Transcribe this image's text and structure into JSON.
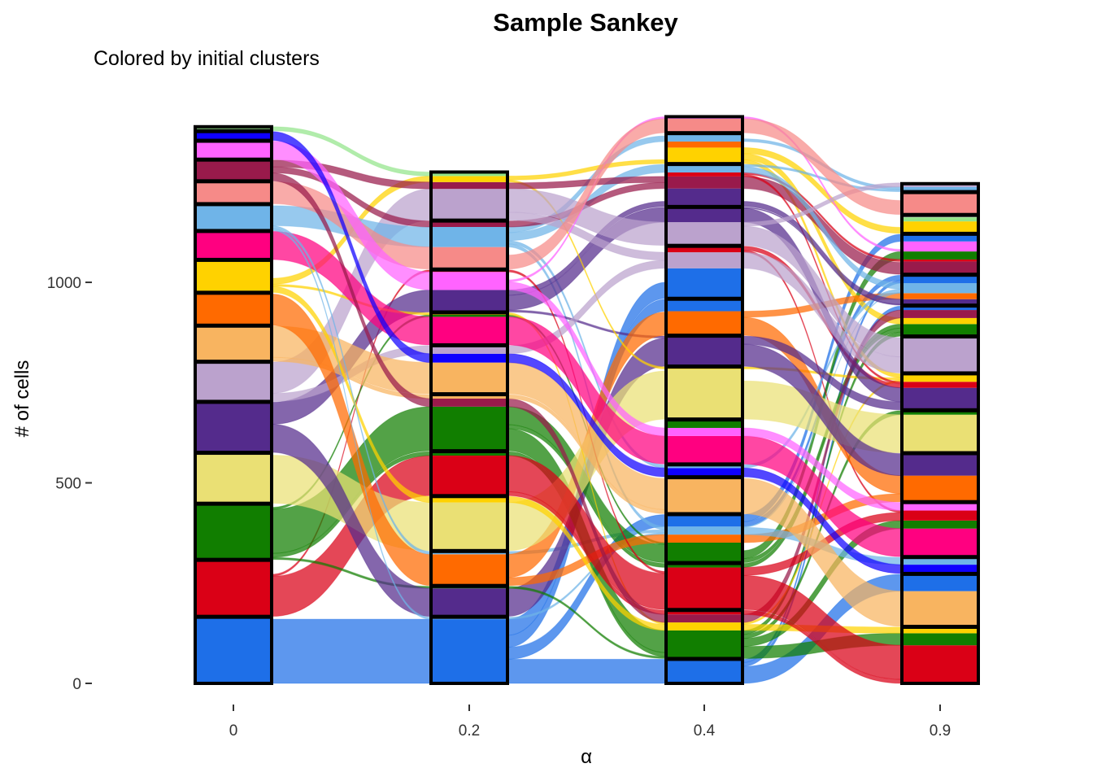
{
  "chart_data": {
    "type": "sankey",
    "title": "Sample Sankey",
    "subtitle": "Colored by initial clusters",
    "xlabel": "α",
    "ylabel": "# of cells",
    "ylim": [
      0,
      1420
    ],
    "yticks": [
      0,
      500,
      1000
    ],
    "grid": false,
    "legend": "none",
    "stages": [
      "0",
      "0.2",
      "0.4",
      "0.9"
    ],
    "initial_clusters": [
      {
        "id": "c1",
        "color": "#1E6FE8",
        "size": 165
      },
      {
        "id": "c2",
        "color": "#DA0016",
        "size": 140
      },
      {
        "id": "c3",
        "color": "#117E00",
        "size": 138
      },
      {
        "id": "c4",
        "color": "#EAE074",
        "size": 125
      },
      {
        "id": "c5",
        "color": "#542B8C",
        "size": 125
      },
      {
        "id": "c6",
        "color": "#BBA2CD",
        "size": 98
      },
      {
        "id": "c7",
        "color": "#F8B460",
        "size": 88
      },
      {
        "id": "c8",
        "color": "#FF6A00",
        "size": 80
      },
      {
        "id": "c9",
        "color": "#FFD200",
        "size": 80
      },
      {
        "id": "c10",
        "color": "#FF0080",
        "size": 70
      },
      {
        "id": "c11",
        "color": "#6FB4E8",
        "size": 65
      },
      {
        "id": "c12",
        "color": "#F68A88",
        "size": 55
      },
      {
        "id": "c13",
        "color": "#991A4B",
        "size": 52
      },
      {
        "id": "c14",
        "color": "#FF63FF",
        "size": 45
      },
      {
        "id": "c15",
        "color": "#0F00FF",
        "size": 22
      },
      {
        "id": "c16",
        "color": "#93E58A",
        "size": 10
      }
    ],
    "stage_clusters": {
      "0": [
        {
          "size": 165,
          "parts": [
            [
              "c1",
              165
            ]
          ]
        },
        {
          "size": 140,
          "parts": [
            [
              "c2",
              140
            ]
          ]
        },
        {
          "size": 138,
          "parts": [
            [
              "c3",
              138
            ]
          ]
        },
        {
          "size": 125,
          "parts": [
            [
              "c4",
              125
            ]
          ]
        },
        {
          "size": 125,
          "parts": [
            [
              "c5",
              125
            ]
          ]
        },
        {
          "size": 98,
          "parts": [
            [
              "c6",
              98
            ]
          ]
        },
        {
          "size": 88,
          "parts": [
            [
              "c7",
              88
            ]
          ]
        },
        {
          "size": 80,
          "parts": [
            [
              "c8",
              80
            ]
          ]
        },
        {
          "size": 80,
          "parts": [
            [
              "c9",
              80
            ]
          ]
        },
        {
          "size": 70,
          "parts": [
            [
              "c10",
              70
            ]
          ]
        },
        {
          "size": 65,
          "parts": [
            [
              "c11",
              65
            ]
          ]
        },
        {
          "size": 55,
          "parts": [
            [
              "c12",
              55
            ]
          ]
        },
        {
          "size": 52,
          "parts": [
            [
              "c13",
              52
            ]
          ]
        },
        {
          "size": 45,
          "parts": [
            [
              "c14",
              45
            ]
          ]
        },
        {
          "size": 22,
          "parts": [
            [
              "c15",
              22
            ]
          ]
        },
        {
          "size": 10,
          "parts": [
            [
              "c16",
              10
            ]
          ]
        }
      ],
      "0.2": [
        {
          "size": 165,
          "parts": [
            [
              "c1",
              160
            ],
            [
              "c11",
              5
            ]
          ]
        },
        {
          "size": 75,
          "parts": [
            [
              "c5",
              70
            ],
            [
              "c3",
              5
            ]
          ]
        },
        {
          "size": 85,
          "parts": [
            [
              "c8",
              78
            ],
            [
              "c11",
              7
            ]
          ]
        },
        {
          "size": 135,
          "parts": [
            [
              "c4",
              120
            ],
            [
              "c9",
              15
            ]
          ]
        },
        {
          "size": 110,
          "parts": [
            [
              "c2",
              100
            ],
            [
              "c3",
              10
            ]
          ]
        },
        {
          "size": 140,
          "parts": [
            [
              "c3",
              110
            ],
            [
              "c13",
              20
            ],
            [
              "c7",
              10
            ]
          ]
        },
        {
          "size": 120,
          "parts": [
            [
              "c7",
              78
            ],
            [
              "c15",
              22
            ],
            [
              "c6",
              20
            ]
          ]
        },
        {
          "size": 80,
          "parts": [
            [
              "c10",
              70
            ],
            [
              "c3",
              5
            ],
            [
              "c9",
              5
            ]
          ]
        },
        {
          "size": 105,
          "parts": [
            [
              "c5",
              55
            ],
            [
              "c14",
              45
            ],
            [
              "c2",
              5
            ]
          ]
        },
        {
          "size": 120,
          "parts": [
            [
              "c12",
              55
            ],
            [
              "c11",
              50
            ],
            [
              "c13",
              15
            ]
          ]
        },
        {
          "size": 120,
          "parts": [
            [
              "c6",
              78
            ],
            [
              "c13",
              17
            ],
            [
              "c9",
              15
            ],
            [
              "c16",
              10
            ]
          ]
        }
      ],
      "0.4": [
        {
          "size": 60,
          "parts": [
            [
              "c1",
              60
            ]
          ]
        },
        {
          "size": 120,
          "parts": [
            [
              "c3",
              70
            ],
            [
              "c9",
              20
            ],
            [
              "c13",
              20
            ],
            [
              "c2",
              10
            ]
          ]
        },
        {
          "size": 115,
          "parts": [
            [
              "c2",
              105
            ],
            [
              "c3",
              10
            ]
          ]
        },
        {
          "size": 120,
          "parts": [
            [
              "c3",
              50
            ],
            [
              "c8",
              20
            ],
            [
              "c11",
              20
            ],
            [
              "c1",
              30
            ]
          ]
        },
        {
          "size": 90,
          "parts": [
            [
              "c7",
              88
            ]
          ]
        },
        {
          "size": 30,
          "parts": [
            [
              "c15",
              22
            ],
            [
              "c11",
              8
            ]
          ]
        },
        {
          "size": 110,
          "parts": [
            [
              "c10",
              70
            ],
            [
              "c14",
              20
            ],
            [
              "c3",
              20
            ]
          ]
        },
        {
          "size": 130,
          "parts": [
            [
              "c4",
              125
            ],
            [
              "c9",
              5
            ]
          ]
        },
        {
          "size": 75,
          "parts": [
            [
              "c5",
              75
            ]
          ]
        },
        {
          "size": 90,
          "parts": [
            [
              "c8",
              60
            ],
            [
              "c1",
              30
            ]
          ]
        },
        {
          "size": 130,
          "parts": [
            [
              "c1",
              75
            ],
            [
              "c6",
              40
            ],
            [
              "c2",
              15
            ]
          ]
        },
        {
          "size": 95,
          "parts": [
            [
              "c6",
              58
            ],
            [
              "c5",
              37
            ]
          ]
        },
        {
          "size": 105,
          "parts": [
            [
              "c5",
              45
            ],
            [
              "c13",
              30
            ],
            [
              "c2",
              10
            ],
            [
              "c11",
              20
            ]
          ]
        },
        {
          "size": 75,
          "parts": [
            [
              "c9",
              40
            ],
            [
              "c8",
              15
            ],
            [
              "c11",
              20
            ]
          ]
        },
        {
          "size": 40,
          "parts": [
            [
              "c12",
              35
            ],
            [
              "c14",
              5
            ]
          ]
        }
      ],
      "0.9": [
        {
          "size": 140,
          "parts": [
            [
              "c2",
              95
            ],
            [
              "c3",
              30
            ],
            [
              "c9",
              15
            ]
          ]
        },
        {
          "size": 130,
          "parts": [
            [
              "c7",
              88
            ],
            [
              "c1",
              42
            ]
          ]
        },
        {
          "size": 40,
          "parts": [
            [
              "c15",
              22
            ],
            [
              "c11",
              18
            ]
          ]
        },
        {
          "size": 135,
          "parts": [
            [
              "c10",
              70
            ],
            [
              "c3",
              20
            ],
            [
              "c2",
              25
            ],
            [
              "c14",
              20
            ]
          ]
        },
        {
          "size": 120,
          "parts": [
            [
              "c8",
              65
            ],
            [
              "c5",
              55
            ]
          ]
        },
        {
          "size": 105,
          "parts": [
            [
              "c4",
              95
            ],
            [
              "c3",
              10
            ]
          ]
        },
        {
          "size": 90,
          "parts": [
            [
              "c5",
              55
            ],
            [
              "c2",
              15
            ],
            [
              "c9",
              20
            ]
          ]
        },
        {
          "size": 90,
          "parts": [
            [
              "c6",
              88
            ]
          ]
        },
        {
          "size": 75,
          "parts": [
            [
              "c3",
              30
            ],
            [
              "c9",
              15
            ],
            [
              "c10",
              0
            ],
            [
              "c13",
              20
            ],
            [
              "c1",
              10
            ]
          ]
        },
        {
          "size": 75,
          "parts": [
            [
              "c5",
              15
            ],
            [
              "c8",
              15
            ],
            [
              "c11",
              25
            ],
            [
              "c1",
              20
            ]
          ]
        },
        {
          "size": 100,
          "parts": [
            [
              "c13",
              32
            ],
            [
              "c2",
              5
            ],
            [
              "c3",
              20
            ],
            [
              "c14",
              25
            ],
            [
              "c1",
              18
            ]
          ]
        },
        {
          "size": 45,
          "parts": [
            [
              "c9",
              30
            ],
            [
              "c16",
              10
            ]
          ]
        },
        {
          "size": 55,
          "parts": [
            [
              "c12",
              55
            ]
          ]
        },
        {
          "size": 20,
          "parts": [
            [
              "c11",
              12
            ],
            [
              "c6",
              10
            ]
          ]
        }
      ]
    }
  }
}
